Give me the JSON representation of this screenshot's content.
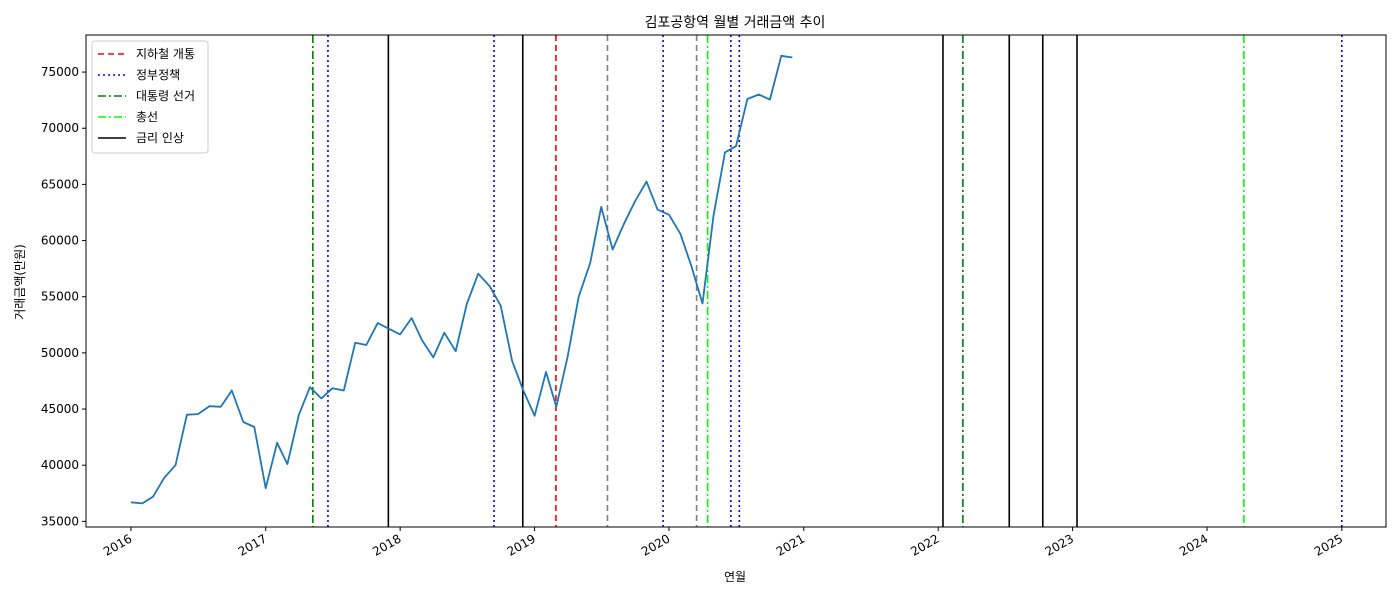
{
  "chart_data": {
    "type": "line",
    "title": "김포공항역 월별 거래금액 추이",
    "xlabel": "연월",
    "ylabel": "거래금액(만원)",
    "xlim": [
      "2015-09-01",
      "2025-05-01"
    ],
    "ylim": [
      34500,
      78300
    ],
    "x_ticks": [
      "2016",
      "2017",
      "2018",
      "2019",
      "2020",
      "2021",
      "2022",
      "2023",
      "2024",
      "2025"
    ],
    "y_ticks": [
      35000,
      40000,
      45000,
      50000,
      55000,
      60000,
      65000,
      70000,
      75000
    ],
    "grid": false,
    "legend_position": "top-left",
    "series": [
      {
        "color": "#1f77b4",
        "points": [
          [
            "2016-01",
            36700
          ],
          [
            "2016-02",
            36600
          ],
          [
            "2016-03",
            37200
          ],
          [
            "2016-04",
            38900
          ],
          [
            "2016-05",
            40000
          ],
          [
            "2016-06",
            44500
          ],
          [
            "2016-07",
            44550
          ],
          [
            "2016-08",
            45250
          ],
          [
            "2016-09",
            45200
          ],
          [
            "2016-10",
            46650
          ],
          [
            "2016-11",
            43850
          ],
          [
            "2016-12",
            43400
          ],
          [
            "2017-01",
            37950
          ],
          [
            "2017-02",
            42000
          ],
          [
            "2017-03",
            40100
          ],
          [
            "2017-04",
            44500
          ],
          [
            "2017-05",
            46950
          ],
          [
            "2017-06",
            45950
          ],
          [
            "2017-07",
            46850
          ],
          [
            "2017-08",
            46650
          ],
          [
            "2017-09",
            50900
          ],
          [
            "2017-10",
            50700
          ],
          [
            "2017-11",
            52650
          ],
          [
            "2017-12",
            52150
          ],
          [
            "2018-01",
            51650
          ],
          [
            "2018-02",
            53100
          ],
          [
            "2018-03",
            51150
          ],
          [
            "2018-04",
            49600
          ],
          [
            "2018-05",
            51800
          ],
          [
            "2018-06",
            50150
          ],
          [
            "2018-07",
            54350
          ],
          [
            "2018-08",
            57050
          ],
          [
            "2018-09",
            55950
          ],
          [
            "2018-10",
            54200
          ],
          [
            "2018-11",
            49300
          ],
          [
            "2018-12",
            46700
          ],
          [
            "2019-01",
            44400
          ],
          [
            "2019-02",
            48300
          ],
          [
            "2019-03",
            45200
          ],
          [
            "2019-04",
            49700
          ],
          [
            "2019-05",
            55000
          ],
          [
            "2019-06",
            58000
          ],
          [
            "2019-07",
            63000
          ],
          [
            "2019-08",
            59200
          ],
          [
            "2019-09",
            61500
          ],
          [
            "2019-10",
            63500
          ],
          [
            "2019-11",
            65250
          ],
          [
            "2019-12",
            62750
          ],
          [
            "2020-01",
            62300
          ],
          [
            "2020-02",
            60600
          ],
          [
            "2020-03",
            57800
          ],
          [
            "2020-04",
            54400
          ],
          [
            "2020-05",
            62200
          ],
          [
            "2020-06",
            67850
          ],
          [
            "2020-07",
            68400
          ],
          [
            "2020-08",
            72600
          ],
          [
            "2020-09",
            73000
          ],
          [
            "2020-10",
            72550
          ],
          [
            "2020-11",
            76450
          ],
          [
            "2020-12",
            76300
          ]
        ]
      }
    ],
    "event_lines": [
      {
        "date": "2017-05-09",
        "category": "presidential"
      },
      {
        "date": "2017-06-19",
        "category": "policy"
      },
      {
        "date": "2017-11-30",
        "category": "rate"
      },
      {
        "date": "2018-09-13",
        "category": "policy"
      },
      {
        "date": "2018-11-30",
        "category": "rate"
      },
      {
        "date": "2019-02-28",
        "category": "subway"
      },
      {
        "date": "2019-07-18",
        "category": "other"
      },
      {
        "date": "2019-12-16",
        "category": "policy"
      },
      {
        "date": "2020-03-16",
        "category": "other"
      },
      {
        "date": "2020-04-15",
        "category": "general"
      },
      {
        "date": "2020-06-17",
        "category": "policy"
      },
      {
        "date": "2020-07-10",
        "category": "policy"
      },
      {
        "date": "2022-01-14",
        "category": "rate"
      },
      {
        "date": "2022-03-09",
        "category": "presidential"
      },
      {
        "date": "2022-07-13",
        "category": "rate"
      },
      {
        "date": "2022-10-12",
        "category": "rate"
      },
      {
        "date": "2023-01-13",
        "category": "rate"
      },
      {
        "date": "2024-04-10",
        "category": "general"
      },
      {
        "date": "2025-01-01",
        "category": "policy"
      }
    ],
    "line_styles": {
      "subway": {
        "color": "#ff0000",
        "dash": "6,4"
      },
      "policy": {
        "color": "#0000ff",
        "dash": "2,3"
      },
      "presidential": {
        "color": "#008000",
        "dash": "8,3,2,3"
      },
      "general": {
        "color": "#00ff00",
        "dash": "8,3,2,3"
      },
      "rate": {
        "color": "#000000",
        "dash": ""
      },
      "other": {
        "color": "#808080",
        "dash": "6,4"
      }
    },
    "legend": [
      {
        "label": "지하철 개통",
        "category": "subway"
      },
      {
        "label": "정부정책",
        "category": "policy"
      },
      {
        "label": "대통령 선거",
        "category": "presidential"
      },
      {
        "label": "총선",
        "category": "general"
      },
      {
        "label": "금리 인상",
        "category": "rate"
      }
    ]
  }
}
